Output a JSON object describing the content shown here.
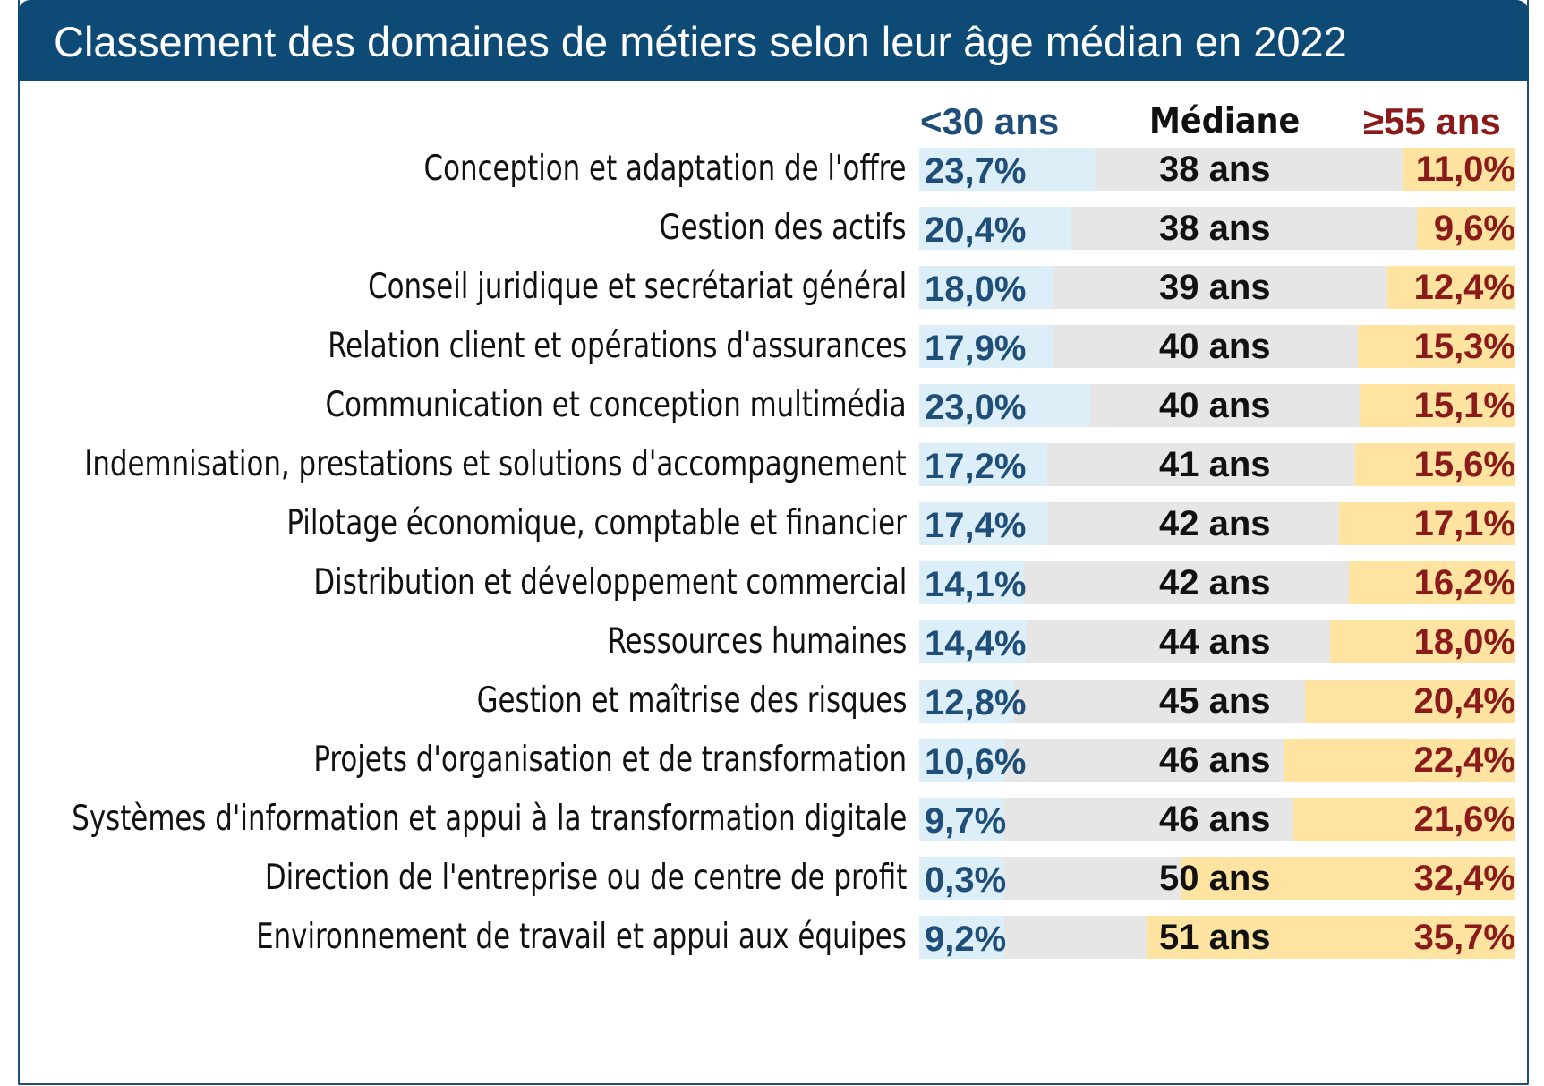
{
  "title": "Classement des domaines de métiers selon leur âge médian en 2022",
  "headers": {
    "young": "<30 ans",
    "median": "Médiane",
    "old": "≥55 ans"
  },
  "colors": {
    "title_bg": "#0d4a76",
    "young_bar": "#dceff9",
    "old_bar": "#ffe3a1",
    "track": "#e6e6e6",
    "young_text": "#1f4e79",
    "old_text": "#8b1a1a"
  },
  "chart_data": {
    "type": "table",
    "title": "Classement des domaines de métiers selon leur âge médian en 2022",
    "columns": [
      "<30 ans",
      "Médiane",
      "≥55 ans"
    ],
    "rows": [
      {
        "label": "Conception et adaptation de l'offre",
        "young": 23.7,
        "young_label": "23,7%",
        "median": 38,
        "median_label": "38 ans",
        "old": 11.0,
        "old_label": "11,0%"
      },
      {
        "label": "Gestion des actifs",
        "young": 20.4,
        "young_label": "20,4%",
        "median": 38,
        "median_label": "38 ans",
        "old": 9.6,
        "old_label": "9,6%"
      },
      {
        "label": "Conseil juridique et secrétariat général",
        "young": 18.0,
        "young_label": "18,0%",
        "median": 39,
        "median_label": "39 ans",
        "old": 12.4,
        "old_label": "12,4%"
      },
      {
        "label": "Relation client et opérations d'assurances",
        "young": 17.9,
        "young_label": "17,9%",
        "median": 40,
        "median_label": "40 ans",
        "old": 15.3,
        "old_label": "15,3%"
      },
      {
        "label": "Communication et conception multimédia",
        "young": 23.0,
        "young_label": "23,0%",
        "median": 40,
        "median_label": "40 ans",
        "old": 15.1,
        "old_label": "15,1%"
      },
      {
        "label": "Indemnisation, prestations et solutions d'accompagnement",
        "young": 17.2,
        "young_label": "17,2%",
        "median": 41,
        "median_label": "41 ans",
        "old": 15.6,
        "old_label": "15,6%"
      },
      {
        "label": "Pilotage économique, comptable et financier",
        "young": 17.4,
        "young_label": "17,4%",
        "median": 42,
        "median_label": "42 ans",
        "old": 17.1,
        "old_label": "17,1%"
      },
      {
        "label": "Distribution et développement commercial",
        "young": 14.1,
        "young_label": "14,1%",
        "median": 42,
        "median_label": "42 ans",
        "old": 16.2,
        "old_label": "16,2%"
      },
      {
        "label": "Ressources humaines",
        "young": 14.4,
        "young_label": "14,4%",
        "median": 44,
        "median_label": "44 ans",
        "old": 18.0,
        "old_label": "18,0%"
      },
      {
        "label": "Gestion et maîtrise des risques",
        "young": 12.8,
        "young_label": "12,8%",
        "median": 45,
        "median_label": "45 ans",
        "old": 20.4,
        "old_label": "20,4%"
      },
      {
        "label": "Projets d'organisation et de transformation",
        "young": 10.6,
        "young_label": "10,6%",
        "median": 46,
        "median_label": "46 ans",
        "old": 22.4,
        "old_label": "22,4%"
      },
      {
        "label": "Systèmes d'information et appui à la transformation digitale",
        "young": 9.7,
        "young_label": "9,7%",
        "median": 46,
        "median_label": "46 ans",
        "old": 21.6,
        "old_label": "21,6%"
      },
      {
        "label": "Direction de l'entreprise ou de centre de profit",
        "young": 0.3,
        "young_label": "0,3%",
        "median": 50,
        "median_label": "50 ans",
        "old": 32.4,
        "old_label": "32,4%"
      },
      {
        "label": "Environnement de travail et appui aux équipes",
        "young": 9.2,
        "young_label": "9,2%",
        "median": 51,
        "median_label": "51 ans",
        "old": 35.7,
        "old_label": "35,7%"
      }
    ]
  }
}
